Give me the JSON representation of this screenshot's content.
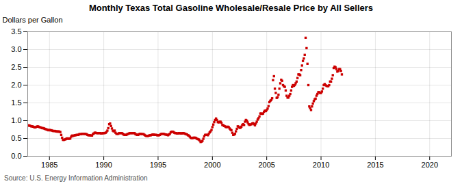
{
  "chart_data": {
    "type": "scatter",
    "title": "Monthly Texas Total Gasoline Wholesale/Resale Price by All Sellers",
    "ylabel": "Dollars per Gallon",
    "caption": "Source: U.S. Energy Information Administration",
    "color": "#cc0000",
    "marker": "square",
    "grid": true,
    "xlim": [
      1983,
      2022
    ],
    "xticks": [
      1985,
      1990,
      1995,
      2000,
      2005,
      2010,
      2015,
      2020
    ],
    "ylim": [
      0.0,
      3.5
    ],
    "yticks": [
      {
        "value": 0.0,
        "label": "0.0"
      },
      0.5,
      {
        "value": 1.0,
        "label": "1.0"
      },
      1.5,
      {
        "value": 2.0,
        "label": "2.0"
      },
      2.5,
      {
        "value": 3.0,
        "label": "3.0"
      },
      3.5
    ],
    "x": [
      1983.0,
      1983.083,
      1983.167,
      1983.25,
      1983.333,
      1983.417,
      1983.5,
      1983.583,
      1983.667,
      1983.75,
      1983.833,
      1983.917,
      1984.0,
      1984.083,
      1984.167,
      1984.25,
      1984.333,
      1984.417,
      1984.5,
      1984.583,
      1984.667,
      1984.75,
      1984.833,
      1984.917,
      1985.0,
      1985.083,
      1985.167,
      1985.25,
      1985.333,
      1985.417,
      1985.5,
      1985.583,
      1985.667,
      1985.75,
      1985.833,
      1985.917,
      1986.0,
      1986.083,
      1986.167,
      1986.25,
      1986.333,
      1986.417,
      1986.5,
      1986.583,
      1986.667,
      1986.75,
      1986.833,
      1986.917,
      1987.0,
      1987.083,
      1987.167,
      1987.25,
      1987.333,
      1987.417,
      1987.5,
      1987.583,
      1987.667,
      1987.75,
      1987.833,
      1987.917,
      1988.0,
      1988.083,
      1988.167,
      1988.25,
      1988.333,
      1988.417,
      1988.5,
      1988.583,
      1988.667,
      1988.75,
      1988.833,
      1988.917,
      1989.0,
      1989.083,
      1989.167,
      1989.25,
      1989.333,
      1989.417,
      1989.5,
      1989.583,
      1989.667,
      1989.75,
      1989.833,
      1989.917,
      1990.0,
      1990.083,
      1990.167,
      1990.25,
      1990.333,
      1990.417,
      1990.5,
      1990.583,
      1990.667,
      1990.75,
      1990.833,
      1990.917,
      1991.0,
      1991.083,
      1991.167,
      1991.25,
      1991.333,
      1991.417,
      1991.5,
      1991.583,
      1991.667,
      1991.75,
      1991.833,
      1991.917,
      1992.0,
      1992.083,
      1992.167,
      1992.25,
      1992.333,
      1992.417,
      1992.5,
      1992.583,
      1992.667,
      1992.75,
      1992.833,
      1992.917,
      1993.0,
      1993.083,
      1993.167,
      1993.25,
      1993.333,
      1993.417,
      1993.5,
      1993.583,
      1993.667,
      1993.75,
      1993.833,
      1993.917,
      1994.0,
      1994.083,
      1994.167,
      1994.25,
      1994.333,
      1994.417,
      1994.5,
      1994.583,
      1994.667,
      1994.75,
      1994.833,
      1994.917,
      1995.0,
      1995.083,
      1995.167,
      1995.25,
      1995.333,
      1995.417,
      1995.5,
      1995.583,
      1995.667,
      1995.75,
      1995.833,
      1995.917,
      1996.0,
      1996.083,
      1996.167,
      1996.25,
      1996.333,
      1996.417,
      1996.5,
      1996.583,
      1996.667,
      1996.75,
      1996.833,
      1996.917,
      1997.0,
      1997.083,
      1997.167,
      1997.25,
      1997.333,
      1997.417,
      1997.5,
      1997.583,
      1997.667,
      1997.75,
      1997.833,
      1997.917,
      1998.0,
      1998.083,
      1998.167,
      1998.25,
      1998.333,
      1998.417,
      1998.5,
      1998.583,
      1998.667,
      1998.75,
      1998.833,
      1998.917,
      1999.0,
      1999.083,
      1999.167,
      1999.25,
      1999.333,
      1999.417,
      1999.5,
      1999.583,
      1999.667,
      1999.75,
      1999.833,
      1999.917,
      2000.0,
      2000.083,
      2000.167,
      2000.25,
      2000.333,
      2000.417,
      2000.5,
      2000.583,
      2000.667,
      2000.75,
      2000.833,
      2000.917,
      2001.0,
      2001.083,
      2001.167,
      2001.25,
      2001.333,
      2001.417,
      2001.5,
      2001.583,
      2001.667,
      2001.75,
      2001.833,
      2001.917,
      2002.0,
      2002.083,
      2002.167,
      2002.25,
      2002.333,
      2002.417,
      2002.5,
      2002.583,
      2002.667,
      2002.75,
      2002.833,
      2002.917,
      2003.0,
      2003.083,
      2003.167,
      2003.25,
      2003.333,
      2003.417,
      2003.5,
      2003.583,
      2003.667,
      2003.75,
      2003.833,
      2003.917,
      2004.0,
      2004.083,
      2004.167,
      2004.25,
      2004.333,
      2004.417,
      2004.5,
      2004.583,
      2004.667,
      2004.75,
      2004.833,
      2004.917,
      2005.0,
      2005.083,
      2005.167,
      2005.25,
      2005.333,
      2005.417,
      2005.5,
      2005.583,
      2005.667,
      2005.75,
      2005.833,
      2005.917,
      2006.0,
      2006.083,
      2006.167,
      2006.25,
      2006.333,
      2006.417,
      2006.5,
      2006.583,
      2006.667,
      2006.75,
      2006.833,
      2006.917,
      2007.0,
      2007.083,
      2007.167,
      2007.25,
      2007.333,
      2007.417,
      2007.5,
      2007.583,
      2007.667,
      2007.75,
      2007.833,
      2007.917,
      2008.0,
      2008.083,
      2008.167,
      2008.25,
      2008.333,
      2008.417,
      2008.5,
      2008.583,
      2008.667,
      2008.75,
      2008.833,
      2008.917,
      2009.0,
      2009.083,
      2009.167,
      2009.25,
      2009.333,
      2009.417,
      2009.5,
      2009.583,
      2009.667,
      2009.75,
      2009.833,
      2009.917,
      2010.0,
      2010.083,
      2010.167,
      2010.25,
      2010.333,
      2010.417,
      2010.5,
      2010.583,
      2010.667,
      2010.75,
      2010.833,
      2010.917,
      2011.0,
      2011.083,
      2011.167,
      2011.25,
      2011.333,
      2011.417,
      2011.5,
      2011.583,
      2011.667,
      2011.75,
      2011.833,
      2011.917
    ],
    "values": [
      0.86,
      0.87,
      0.86,
      0.85,
      0.84,
      0.84,
      0.83,
      0.82,
      0.81,
      0.82,
      0.83,
      0.84,
      0.83,
      0.82,
      0.81,
      0.8,
      0.79,
      0.79,
      0.78,
      0.77,
      0.76,
      0.75,
      0.74,
      0.73,
      0.74,
      0.73,
      0.73,
      0.72,
      0.71,
      0.71,
      0.71,
      0.7,
      0.7,
      0.69,
      0.7,
      0.69,
      0.68,
      0.6,
      0.52,
      0.46,
      0.46,
      0.47,
      0.48,
      0.5,
      0.49,
      0.5,
      0.49,
      0.5,
      0.55,
      0.58,
      0.57,
      0.58,
      0.59,
      0.59,
      0.6,
      0.6,
      0.6,
      0.62,
      0.62,
      0.62,
      0.63,
      0.63,
      0.63,
      0.63,
      0.62,
      0.62,
      0.6,
      0.59,
      0.59,
      0.59,
      0.58,
      0.58,
      0.62,
      0.64,
      0.66,
      0.66,
      0.65,
      0.65,
      0.65,
      0.65,
      0.65,
      0.64,
      0.64,
      0.65,
      0.65,
      0.65,
      0.66,
      0.68,
      0.72,
      0.79,
      0.9,
      0.92,
      0.85,
      0.78,
      0.72,
      0.7,
      0.72,
      0.66,
      0.63,
      0.63,
      0.63,
      0.65,
      0.65,
      0.65,
      0.65,
      0.63,
      0.61,
      0.6,
      0.6,
      0.6,
      0.62,
      0.63,
      0.64,
      0.65,
      0.65,
      0.65,
      0.65,
      0.65,
      0.65,
      0.62,
      0.61,
      0.6,
      0.6,
      0.62,
      0.63,
      0.63,
      0.62,
      0.62,
      0.62,
      0.6,
      0.58,
      0.57,
      0.57,
      0.57,
      0.58,
      0.59,
      0.59,
      0.6,
      0.61,
      0.61,
      0.6,
      0.6,
      0.6,
      0.59,
      0.59,
      0.59,
      0.6,
      0.62,
      0.63,
      0.63,
      0.63,
      0.62,
      0.61,
      0.61,
      0.6,
      0.59,
      0.61,
      0.63,
      0.67,
      0.69,
      0.69,
      0.68,
      0.66,
      0.65,
      0.65,
      0.64,
      0.64,
      0.65,
      0.65,
      0.64,
      0.64,
      0.65,
      0.65,
      0.64,
      0.63,
      0.62,
      0.61,
      0.59,
      0.58,
      0.55,
      0.52,
      0.51,
      0.51,
      0.52,
      0.52,
      0.52,
      0.51,
      0.49,
      0.48,
      0.47,
      0.44,
      0.4,
      0.41,
      0.43,
      0.49,
      0.56,
      0.6,
      0.6,
      0.6,
      0.59,
      0.63,
      0.67,
      0.7,
      0.74,
      0.82,
      0.89,
      0.96,
      1.02,
      1.06,
      1.02,
      0.96,
      0.95,
      0.97,
      0.97,
      0.94,
      0.88,
      0.87,
      0.85,
      0.84,
      0.82,
      0.82,
      0.83,
      0.82,
      0.78,
      0.75,
      0.73,
      0.66,
      0.6,
      0.61,
      0.63,
      0.7,
      0.77,
      0.84,
      0.83,
      0.8,
      0.8,
      0.83,
      0.88,
      0.9,
      0.88,
      0.97,
      1.02,
      1.0,
      0.95,
      0.9,
      0.88,
      0.89,
      0.9,
      0.92,
      0.93,
      0.9,
      0.87,
      0.92,
      0.97,
      1.03,
      1.07,
      1.12,
      1.2,
      1.2,
      1.19,
      1.2,
      1.25,
      1.28,
      1.27,
      1.3,
      1.34,
      1.41,
      1.52,
      1.56,
      1.58,
      1.63,
      2.14,
      2.25,
      1.9,
      1.78,
      1.64,
      1.66,
      1.73,
      1.9,
      2.05,
      2.15,
      2.12,
      2.0,
      1.97,
      1.95,
      1.85,
      1.7,
      1.65,
      1.65,
      1.7,
      1.75,
      1.85,
      1.95,
      2.0,
      1.98,
      2.0,
      2.05,
      2.1,
      2.2,
      2.3,
      2.3,
      2.28,
      2.42,
      2.55,
      2.68,
      2.75,
      2.85,
      3.33,
      3.04,
      2.6,
      2.0,
      1.4,
      1.35,
      1.3,
      1.4,
      1.48,
      1.55,
      1.6,
      1.62,
      1.7,
      1.75,
      1.8,
      1.8,
      1.78,
      1.78,
      1.82,
      1.9,
      2.0,
      2.03,
      2.0,
      1.98,
      1.97,
      1.97,
      2.0,
      2.1,
      2.1,
      2.18,
      2.28,
      2.48,
      2.52,
      2.5,
      2.45,
      2.38,
      2.4,
      2.45,
      2.45,
      2.4,
      2.3
    ]
  }
}
